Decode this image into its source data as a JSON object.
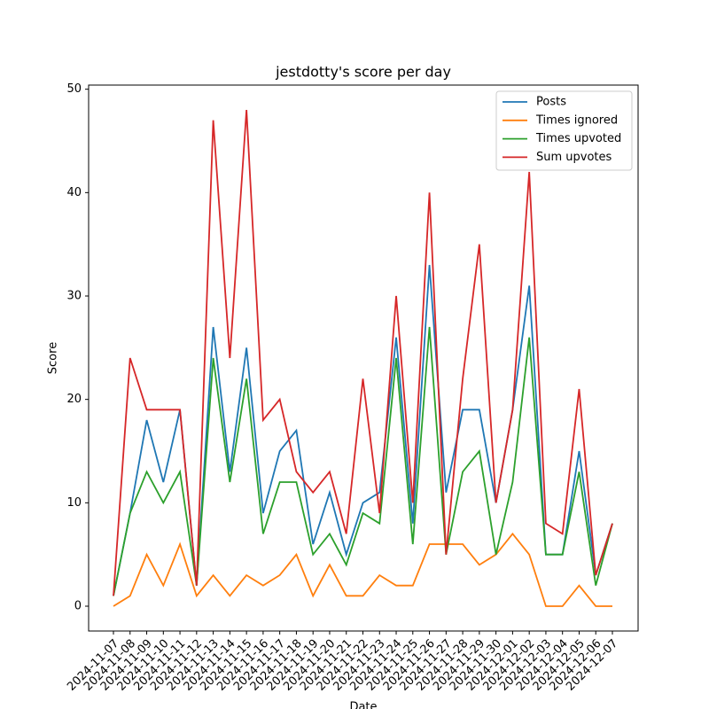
{
  "chart_data": {
    "type": "line",
    "title": "jestdotty's score per day",
    "xlabel": "Date",
    "ylabel": "Score",
    "categories": [
      "2024-11-07",
      "2024-11-08",
      "2024-11-09",
      "2024-11-10",
      "2024-11-11",
      "2024-11-12",
      "2024-11-13",
      "2024-11-14",
      "2024-11-15",
      "2024-11-16",
      "2024-11-17",
      "2024-11-18",
      "2024-11-19",
      "2024-11-20",
      "2024-11-21",
      "2024-11-22",
      "2024-11-23",
      "2024-11-24",
      "2024-11-25",
      "2024-11-26",
      "2024-11-27",
      "2024-11-28",
      "2024-11-29",
      "2024-11-30",
      "2024-12-01",
      "2024-12-02",
      "2024-12-03",
      "2024-12-04",
      "2024-12-05",
      "2024-12-06",
      "2024-12-07"
    ],
    "series": [
      {
        "name": "Posts",
        "color": "#1f77b4",
        "values": [
          1,
          9,
          18,
          12,
          19,
          2,
          27,
          13,
          25,
          9,
          15,
          17,
          6,
          11,
          5,
          10,
          11,
          26,
          8,
          33,
          11,
          19,
          19,
          10,
          19,
          31,
          5,
          5,
          15,
          3,
          8
        ]
      },
      {
        "name": "Times ignored",
        "color": "#ff7f0e",
        "values": [
          0,
          1,
          5,
          2,
          6,
          1,
          3,
          1,
          3,
          2,
          3,
          5,
          1,
          4,
          1,
          1,
          3,
          2,
          2,
          6,
          6,
          6,
          4,
          5,
          7,
          5,
          0,
          0,
          2,
          0,
          0
        ]
      },
      {
        "name": "Times upvoted",
        "color": "#2ca02c",
        "values": [
          1,
          9,
          13,
          10,
          13,
          2,
          24,
          12,
          22,
          7,
          12,
          12,
          5,
          7,
          4,
          9,
          8,
          24,
          6,
          27,
          5,
          13,
          15,
          5,
          12,
          26,
          5,
          5,
          13,
          2,
          8
        ]
      },
      {
        "name": "Sum upvotes",
        "color": "#d62728",
        "values": [
          1,
          24,
          19,
          19,
          19,
          2,
          47,
          24,
          48,
          18,
          20,
          13,
          11,
          13,
          7,
          22,
          9,
          30,
          10,
          40,
          5,
          22,
          35,
          10,
          19,
          42,
          8,
          7,
          21,
          3,
          8
        ]
      }
    ],
    "ylim": [
      -2.4,
      50.4
    ],
    "yticks": [
      0,
      10,
      20,
      30,
      40,
      50
    ],
    "legend": "upper right"
  }
}
